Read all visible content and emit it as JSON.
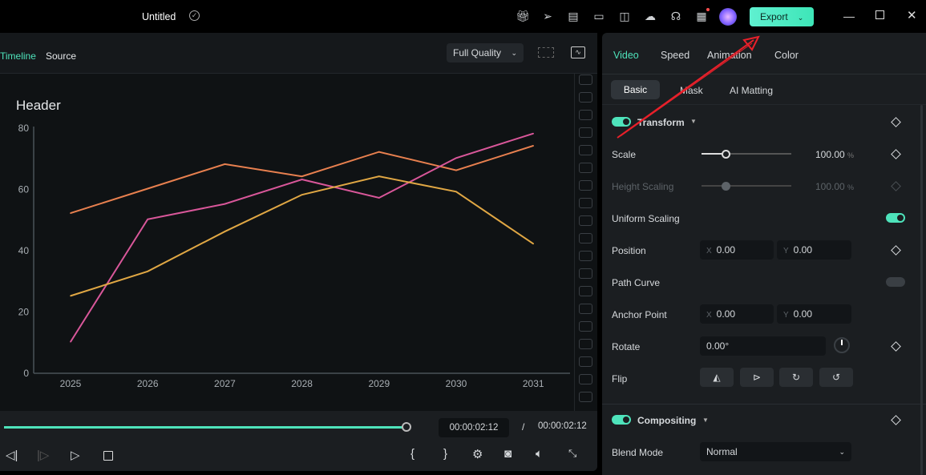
{
  "topbar": {
    "title": "Untitled",
    "export_label": "Export",
    "icons": [
      "gift-icon",
      "send-icon",
      "clipboard-clock-icon",
      "layout-icon",
      "save-icon",
      "cloud-upload-icon",
      "headset-icon",
      "apps-icon",
      "avatar"
    ]
  },
  "preview": {
    "tabs": [
      "Timeline",
      "Source"
    ],
    "quality": "Full Quality",
    "current_time": "00:00:02:12",
    "separator": "/",
    "total_time": "00:00:02:12",
    "progress": 1.0
  },
  "chart_data": {
    "type": "line",
    "title": "Header",
    "categories": [
      "2025",
      "2026",
      "2027",
      "2028",
      "2029",
      "2030",
      "2031"
    ],
    "ylim": [
      0,
      80
    ],
    "yticks": [
      "0",
      "20",
      "40",
      "60",
      "80"
    ],
    "series": [
      {
        "name": "orange",
        "color": "#e8804f",
        "values": [
          52,
          60,
          68,
          64,
          72,
          66,
          74
        ]
      },
      {
        "name": "pink",
        "color": "#d9579a",
        "values": [
          10,
          50,
          55,
          63,
          57,
          70,
          78
        ]
      },
      {
        "name": "yellow",
        "color": "#e0a744",
        "values": [
          25,
          33,
          46,
          58,
          64,
          59,
          42
        ]
      }
    ]
  },
  "panel": {
    "tabs": [
      "Video",
      "Speed",
      "Animation",
      "Color"
    ],
    "subtabs": [
      "Basic",
      "Mask",
      "AI Matting"
    ],
    "transform": "Transform",
    "scale": {
      "label": "Scale",
      "value": "100.00",
      "unit": "%",
      "fraction": 0.28
    },
    "height_scaling": {
      "label": "Height Scaling",
      "value": "100.00",
      "unit": "%",
      "fraction": 0.28
    },
    "uniform_scaling": "Uniform Scaling",
    "position": {
      "label": "Position",
      "x_axis": "X",
      "x": "0.00",
      "y_axis": "Y",
      "y": "0.00"
    },
    "path_curve": "Path Curve",
    "anchor": {
      "label": "Anchor Point",
      "x_axis": "X",
      "x": "0.00",
      "y_axis": "Y",
      "y": "0.00"
    },
    "rotate": {
      "label": "Rotate",
      "value": "0.00°"
    },
    "flip": "Flip",
    "compositing": "Compositing",
    "blend": {
      "label": "Blend Mode",
      "value": "Normal"
    }
  },
  "colors": {
    "accent": "#4ee3bb",
    "annotation": "#e8202a"
  }
}
